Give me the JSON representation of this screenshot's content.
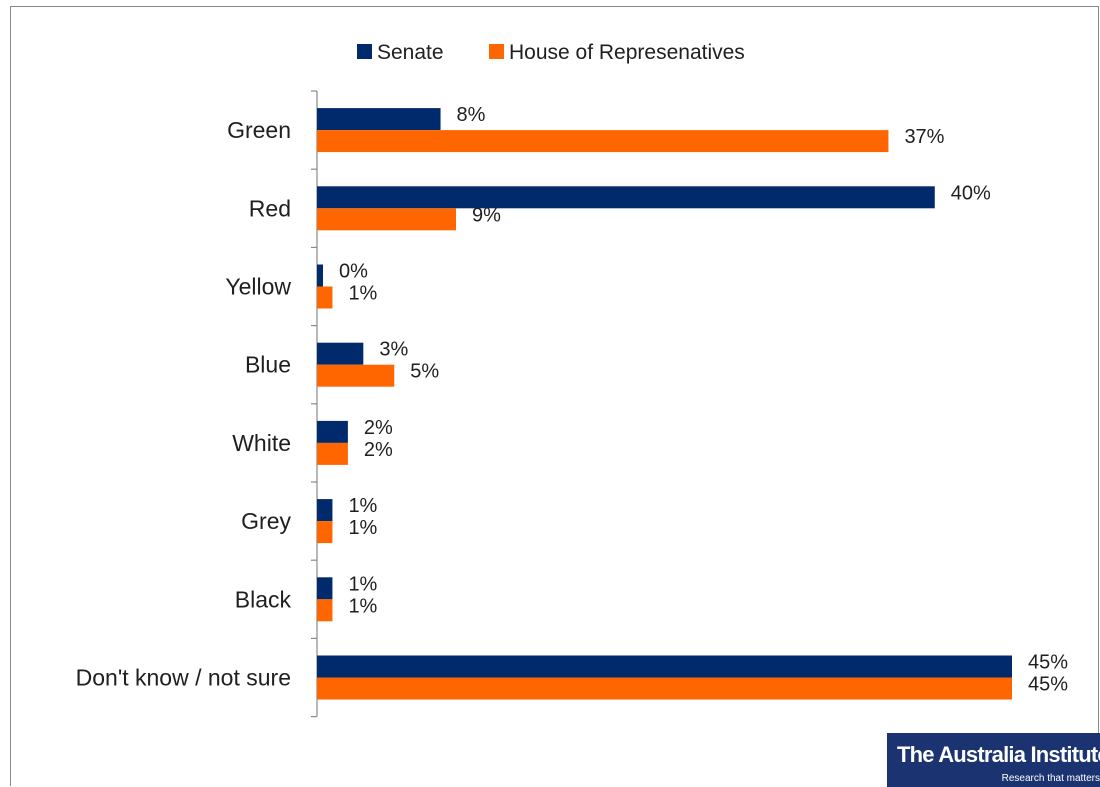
{
  "chart_data": {
    "type": "bar",
    "orientation": "horizontal",
    "categories": [
      "Green",
      "Red",
      "Yellow",
      "Blue",
      "White",
      "Grey",
      "Black",
      "Don't know / not sure"
    ],
    "series": [
      {
        "name": "Senate",
        "color": "#002A6C",
        "values": [
          8,
          40,
          0,
          3,
          2,
          1,
          1,
          45
        ],
        "labels": [
          "8%",
          "40%",
          "0%",
          "3%",
          "2%",
          "1%",
          "1%",
          "45%"
        ]
      },
      {
        "name": "House of Represenatives",
        "color": "#FF6600",
        "values": [
          37,
          9,
          1,
          5,
          2,
          1,
          1,
          45
        ],
        "labels": [
          "37%",
          "9%",
          "1%",
          "5%",
          "2%",
          "1%",
          "1%",
          "45%"
        ]
      }
    ],
    "legend_position": "top",
    "grid": false,
    "xlim": [
      0,
      45
    ]
  },
  "logo": {
    "name": "The Australia Institute",
    "tagline": "Research that matters"
  }
}
